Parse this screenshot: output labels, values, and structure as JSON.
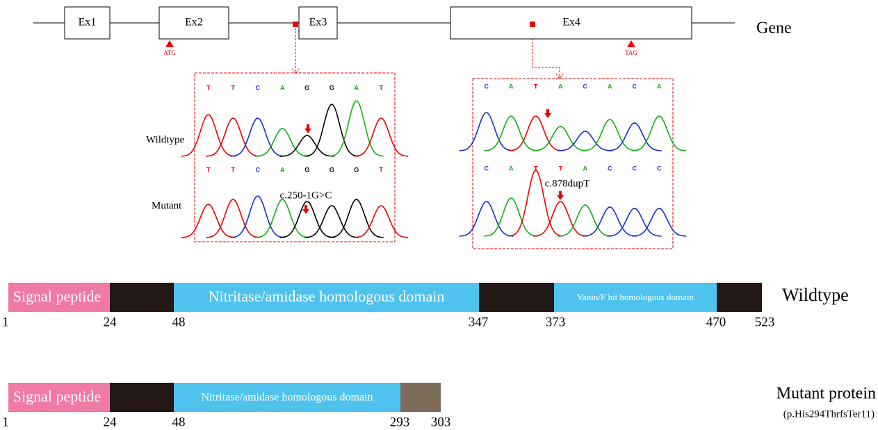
{
  "gene": {
    "label": "Gene",
    "exons": [
      "Ex1",
      "Ex2",
      "Ex3",
      "Ex4"
    ],
    "start_codon": "ATG",
    "stop_codon": "TAG"
  },
  "row_labels": {
    "wildtype": "Wildtype",
    "mutant": "Mutant"
  },
  "chromatograms": [
    {
      "wildtype_bases": [
        "T",
        "T",
        "C",
        "A",
        "G",
        "G",
        "A",
        "T"
      ],
      "mutant_bases": [
        "T",
        "T",
        "C",
        "A",
        "G",
        "G",
        "G",
        "T"
      ],
      "mutation": "c.250-1G>C"
    },
    {
      "wildtype_bases": [
        "C",
        "A",
        "T",
        "A",
        "C",
        "A",
        "C",
        "A"
      ],
      "mutant_bases": [
        "C",
        "A",
        "T",
        "T",
        "A",
        "C",
        "C",
        "C"
      ],
      "mutation": "c.878dupT"
    }
  ],
  "proteins": [
    {
      "label": "Wildtype",
      "segments": [
        "Signal peptide",
        null,
        "Nitritase/amidase homologous domain",
        null,
        "Vanin/F hit homologous domain",
        null
      ],
      "positions": [
        "1",
        "24",
        "48",
        "347",
        "373",
        "470",
        "523"
      ]
    },
    {
      "label": "Mutant protein",
      "note": "(p.His294ThrfsTer11)",
      "segments": [
        "Signal peptide",
        null,
        "Nitritase/amidase homologous domain",
        null
      ],
      "positions": [
        "1",
        "24",
        "48",
        "293",
        "303"
      ]
    }
  ]
}
